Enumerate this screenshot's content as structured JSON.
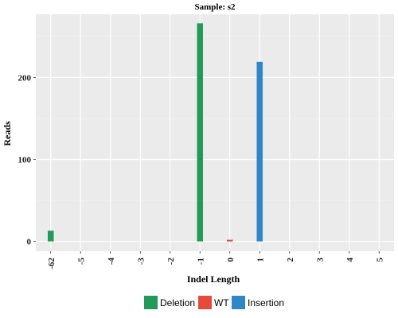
{
  "chart_data": {
    "type": "bar",
    "title": "Sample: s2",
    "xlabel": "Indel Length",
    "ylabel": "Reads",
    "categories": [
      "-62",
      "-5",
      "-4",
      "-3",
      "-2",
      "-1",
      "0",
      "1",
      "2",
      "3",
      "4",
      "5"
    ],
    "ylim": [
      -12,
      277
    ],
    "yticks": [
      0,
      100,
      200
    ],
    "grid": true,
    "legend_position": "bottom",
    "series": [
      {
        "name": "Deletion",
        "color": "#23995a",
        "values": [
          13,
          0,
          0,
          0,
          0,
          266,
          0,
          0,
          0,
          0,
          0,
          0
        ]
      },
      {
        "name": "WT",
        "color": "#e64a3b",
        "values": [
          0,
          0,
          0,
          0,
          0,
          0,
          2,
          0,
          0,
          0,
          0,
          0
        ]
      },
      {
        "name": "Insertion",
        "color": "#2f86c8",
        "values": [
          0,
          0,
          0,
          0,
          0,
          0,
          0,
          219,
          0,
          0,
          0,
          0
        ]
      }
    ],
    "panel_color": "#ebebeb"
  }
}
